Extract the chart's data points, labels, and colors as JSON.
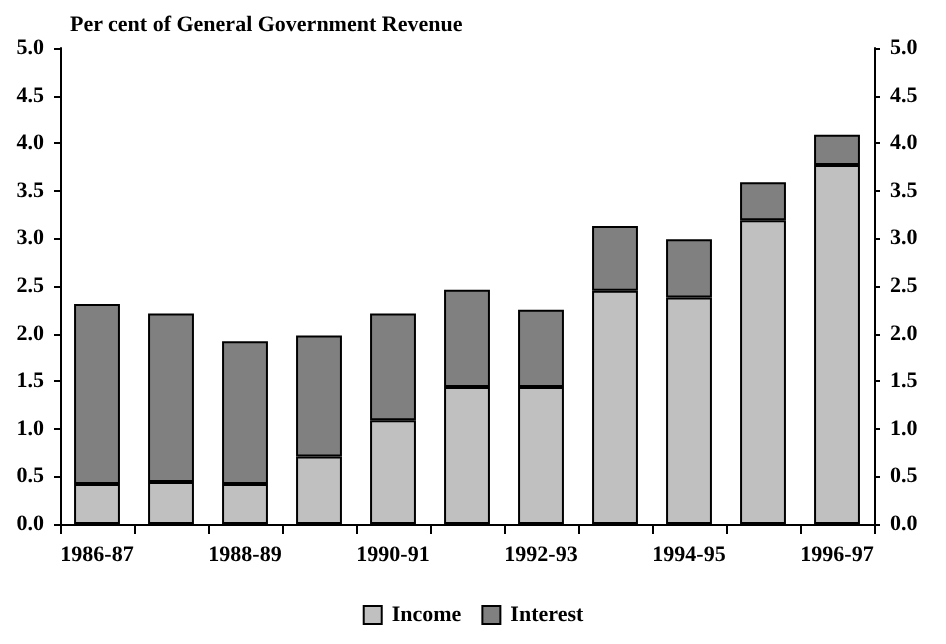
{
  "chart_data": {
    "type": "bar",
    "ylabel": "Per cent of General Government Revenue",
    "categories": [
      "1986-87",
      null,
      "1988-89",
      null,
      "1990-91",
      null,
      "1992-93",
      null,
      "1994-95",
      null,
      "1996-97"
    ],
    "series": [
      {
        "name": "Income",
        "color": "#c0c0c0",
        "values": [
          0.42,
          0.44,
          0.42,
          0.71,
          1.09,
          1.44,
          1.44,
          2.45,
          2.38,
          3.19,
          3.77
        ]
      },
      {
        "name": "Interest",
        "color": "#808080",
        "values": [
          1.89,
          1.77,
          1.5,
          1.27,
          1.12,
          1.02,
          0.81,
          0.68,
          0.61,
          0.4,
          0.32
        ]
      }
    ],
    "stacked": true,
    "ylim": [
      0,
      5
    ],
    "yticks": [
      {
        "value": 0,
        "label": "0.0"
      },
      0.5,
      {
        "value": 1,
        "label": "1.0"
      },
      1.5,
      {
        "value": 2,
        "label": "2.0"
      },
      2.5,
      {
        "value": 3,
        "label": "3.0"
      },
      3.5,
      {
        "value": 4,
        "label": "4.0"
      },
      4.5,
      {
        "value": 5,
        "label": "5.0"
      }
    ],
    "y2lim": [
      0,
      5
    ],
    "y2ticks": [
      {
        "value": 0,
        "label": "0.0"
      },
      0.5,
      {
        "value": 1,
        "label": "1.0"
      },
      1.5,
      {
        "value": 2,
        "label": "2.0"
      },
      2.5,
      {
        "value": 3,
        "label": "3.0"
      },
      3.5,
      {
        "value": 4,
        "label": "4.0"
      },
      4.5,
      {
        "value": 5,
        "label": "5.0"
      }
    ],
    "grid": false,
    "legend": "bottom"
  }
}
